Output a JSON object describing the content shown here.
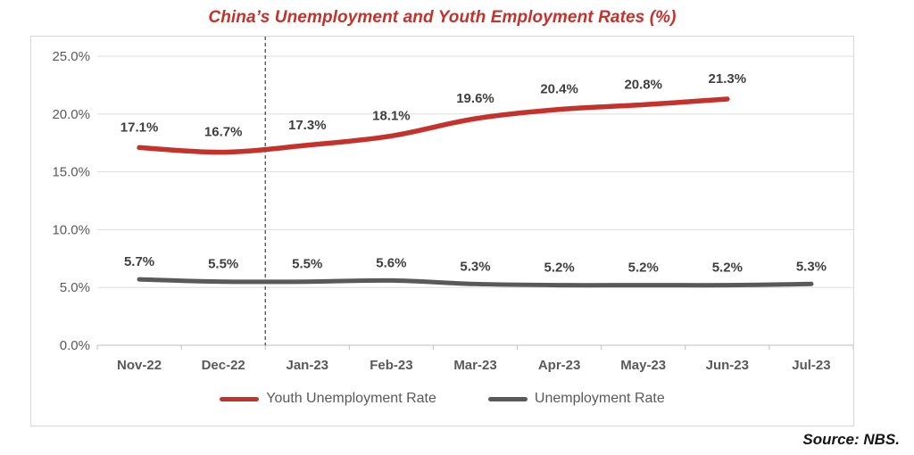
{
  "title": "China’s Unemployment and Youth Employment Rates (%)",
  "title_color": "#c5312b",
  "source": "Source: NBS.",
  "chart_data": {
    "type": "line",
    "categories": [
      "Nov-22",
      "Dec-22",
      "Jan-23",
      "Feb-23",
      "Mar-23",
      "Apr-23",
      "May-23",
      "Jun-23",
      "Jul-23"
    ],
    "series": [
      {
        "name": "Youth Unemployment Rate",
        "color": "#c5312b",
        "values": [
          17.1,
          16.7,
          17.3,
          18.1,
          19.6,
          20.4,
          20.8,
          21.3
        ],
        "labels": [
          "17.1%",
          "16.7%",
          "17.3%",
          "18.1%",
          "19.6%",
          "20.4%",
          "20.8%",
          "21.3%"
        ]
      },
      {
        "name": "Unemployment Rate",
        "color": "#595959",
        "values": [
          5.7,
          5.5,
          5.5,
          5.6,
          5.3,
          5.2,
          5.2,
          5.2,
          5.3
        ],
        "labels": [
          "5.7%",
          "5.5%",
          "5.5%",
          "5.6%",
          "5.3%",
          "5.2%",
          "5.2%",
          "5.2%",
          "5.3%"
        ]
      }
    ],
    "title": "China’s Unemployment and Youth Employment Rates (%)",
    "xlabel": "",
    "ylabel": "",
    "ylim": [
      0,
      25
    ],
    "yticks": [
      "0.0%",
      "5.0%",
      "10.0%",
      "15.0%",
      "20.0%",
      "25.0%"
    ],
    "grid": true,
    "legend_position": "bottom",
    "annotations": {
      "vline_style": "dashed",
      "vline_before_category": "Jan-23"
    }
  }
}
